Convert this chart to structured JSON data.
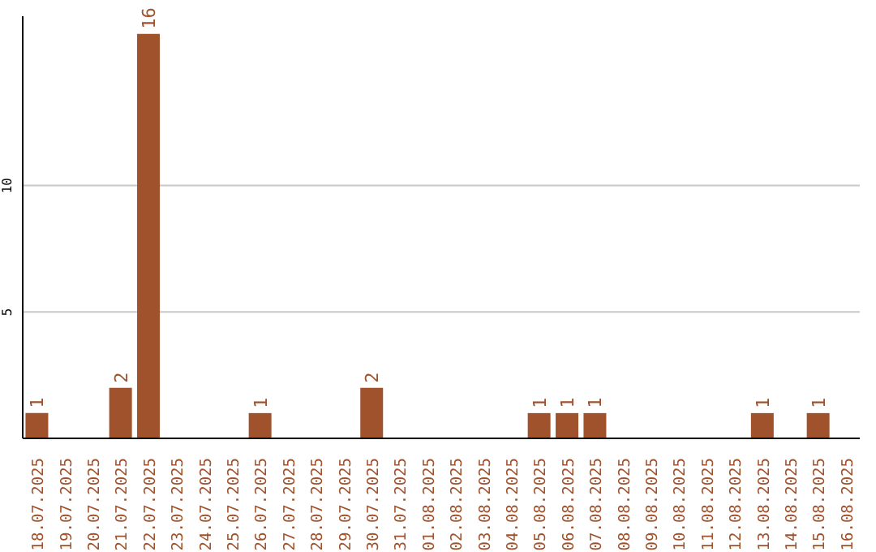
{
  "chart_data": {
    "type": "bar",
    "categories": [
      "18.07.2025",
      "19.07.2025",
      "20.07.2025",
      "21.07.2025",
      "22.07.2025",
      "23.07.2025",
      "24.07.2025",
      "25.07.2025",
      "26.07.2025",
      "27.07.2025",
      "28.07.2025",
      "29.07.2025",
      "30.07.2025",
      "31.07.2025",
      "01.08.2025",
      "02.08.2025",
      "03.08.2025",
      "04.08.2025",
      "05.08.2025",
      "06.08.2025",
      "07.08.2025",
      "08.08.2025",
      "09.08.2025",
      "10.08.2025",
      "11.08.2025",
      "12.08.2025",
      "13.08.2025",
      "14.08.2025",
      "15.08.2025",
      "16.08.2025"
    ],
    "values": [
      1,
      0,
      0,
      2,
      16,
      0,
      0,
      0,
      1,
      0,
      0,
      0,
      2,
      0,
      0,
      0,
      0,
      0,
      1,
      1,
      1,
      0,
      0,
      0,
      0,
      0,
      1,
      0,
      1,
      0
    ],
    "value_labels": [
      "1",
      null,
      null,
      "2",
      "16",
      null,
      null,
      null,
      "1",
      null,
      null,
      null,
      "2",
      null,
      null,
      null,
      null,
      null,
      "1",
      "1",
      "1",
      null,
      null,
      null,
      null,
      null,
      "1",
      null,
      "1",
      null
    ],
    "color": "#a0522d",
    "ylim": [
      0,
      16.7
    ],
    "yticks": [
      5,
      10
    ],
    "grid": "y"
  }
}
